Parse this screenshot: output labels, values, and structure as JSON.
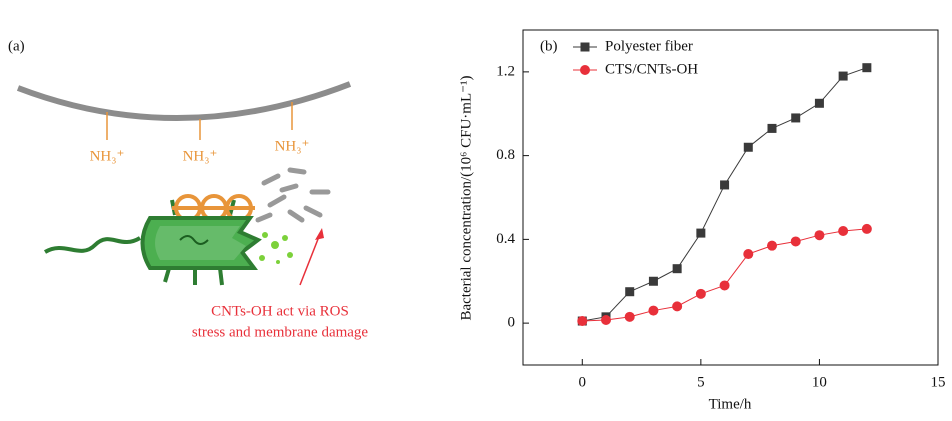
{
  "panel_a": {
    "label": "(a)",
    "groups": [
      "NH₃⁺",
      "NH₃⁺",
      "NH₃⁺"
    ],
    "annotation": [
      "CNTs-OH act via ROS",
      "stress and membrane damage"
    ]
  },
  "chart_data": {
    "type": "line",
    "panel_label": "(b)",
    "x_label": "Time/h",
    "y_label": "Bacterial concentration/(10⁶ CFU·mL⁻¹)",
    "x": [
      0,
      1,
      2,
      3,
      4,
      5,
      6,
      7,
      8,
      9,
      10,
      11,
      12
    ],
    "series": [
      {
        "name": "Polyester fiber",
        "color": "#3a3a3a",
        "marker": "square",
        "values": [
          0.01,
          0.03,
          0.15,
          0.2,
          0.26,
          0.43,
          0.66,
          0.84,
          0.93,
          0.98,
          1.05,
          1.18,
          1.22
        ]
      },
      {
        "name": "CTS/CNTs-OH",
        "color": "#e8303a",
        "marker": "circle",
        "values": [
          0.01,
          0.015,
          0.03,
          0.06,
          0.08,
          0.14,
          0.18,
          0.33,
          0.37,
          0.39,
          0.42,
          0.44,
          0.45
        ]
      }
    ],
    "xlim": [
      -2.5,
      15
    ],
    "ylim": [
      -0.2,
      1.4
    ],
    "xticks": [
      0,
      5,
      10,
      15
    ],
    "yticks": [
      0,
      0.4,
      0.8,
      1.2
    ]
  }
}
